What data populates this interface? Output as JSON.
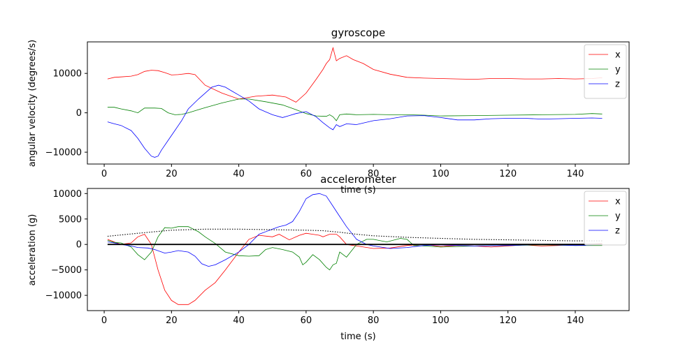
{
  "chart_data": [
    {
      "type": "line",
      "title": "gyroscope",
      "xlabel": "time (s)",
      "ylabel": "angular velocity (degrees/s)",
      "xlim": [
        -5,
        156
      ],
      "ylim": [
        -13000,
        18000
      ],
      "xticks": [
        0,
        20,
        40,
        60,
        80,
        100,
        120,
        140
      ],
      "yticks": [
        -10000,
        0,
        10000
      ],
      "legend": "top-right",
      "series": [
        {
          "name": "x",
          "color": "#ff0000",
          "x": [
            1,
            3,
            5,
            8,
            10,
            12,
            14,
            16,
            18,
            20,
            22,
            25,
            27,
            30,
            35,
            40,
            45,
            50,
            54,
            57,
            60,
            63,
            65,
            66,
            67,
            68,
            69,
            70,
            72,
            74,
            77,
            80,
            85,
            90,
            95,
            100,
            105,
            110,
            115,
            120,
            125,
            130,
            135,
            140,
            145,
            148
          ],
          "y": [
            8600,
            9000,
            9100,
            9300,
            9700,
            10500,
            10800,
            10700,
            10200,
            9600,
            9700,
            10000,
            9700,
            7000,
            5000,
            3500,
            4200,
            4500,
            4000,
            2700,
            5000,
            8500,
            11000,
            12500,
            13500,
            16500,
            13200,
            13800,
            14500,
            13500,
            12500,
            11000,
            9800,
            9000,
            8800,
            8700,
            8600,
            8500,
            8700,
            8700,
            8600,
            8600,
            8700,
            8600,
            8700,
            8900
          ]
        },
        {
          "name": "y",
          "color": "#008000",
          "x": [
            1,
            3,
            5,
            8,
            10,
            12,
            15,
            17,
            19,
            21,
            23,
            25,
            28,
            30,
            35,
            40,
            43,
            48,
            53,
            57,
            60,
            63,
            66,
            67,
            68,
            69,
            70,
            72,
            75,
            80,
            85,
            90,
            95,
            100,
            110,
            120,
            130,
            140,
            145,
            148
          ],
          "y": [
            1400,
            1400,
            1000,
            500,
            0,
            1200,
            1200,
            1100,
            0,
            -500,
            -400,
            0,
            800,
            1300,
            2500,
            3500,
            3500,
            2800,
            2000,
            800,
            -200,
            -800,
            -900,
            -500,
            -1000,
            -2000,
            -500,
            -300,
            -500,
            -400,
            -500,
            -500,
            -600,
            -800,
            -700,
            -600,
            -500,
            -400,
            -200,
            -300
          ]
        },
        {
          "name": "z",
          "color": "#0000ff",
          "x": [
            1,
            3,
            5,
            8,
            10,
            12,
            14,
            15,
            16,
            17,
            19,
            21,
            23,
            25,
            28,
            30,
            32,
            34,
            36,
            38,
            40,
            43,
            46,
            50,
            53,
            55,
            57,
            60,
            63,
            65,
            67,
            68,
            69,
            70,
            72,
            75,
            80,
            85,
            90,
            95,
            100,
            105,
            110,
            115,
            120,
            125,
            130,
            135,
            140,
            145,
            148
          ],
          "y": [
            -2300,
            -2800,
            -3200,
            -4500,
            -6500,
            -9000,
            -11000,
            -11300,
            -11000,
            -9500,
            -7000,
            -4500,
            -2000,
            1000,
            3500,
            5000,
            6500,
            7000,
            6500,
            5500,
            4500,
            3000,
            1000,
            -500,
            -1200,
            -700,
            -200,
            300,
            -1000,
            -2500,
            -3800,
            -4300,
            -3000,
            -3500,
            -2800,
            -3000,
            -2000,
            -1500,
            -800,
            -700,
            -1200,
            -1800,
            -1800,
            -1500,
            -1400,
            -1400,
            -1600,
            -1500,
            -1400,
            -1300,
            -1400
          ]
        }
      ]
    },
    {
      "type": "line",
      "title": "accelerometer",
      "xlabel": "time (s)",
      "ylabel": "acceleration (g)",
      "xlim": [
        -5,
        156
      ],
      "ylim": [
        -13000,
        11000
      ],
      "xticks": [
        0,
        20,
        40,
        60,
        80,
        100,
        120,
        140
      ],
      "yticks": [
        -10000,
        -5000,
        0,
        5000,
        10000
      ],
      "legend": "top-right",
      "series": [
        {
          "name": "x",
          "color": "#ff0000",
          "x": [
            1,
            3,
            5,
            8,
            10,
            12,
            14,
            16,
            18,
            20,
            22,
            25,
            27,
            30,
            33,
            36,
            40,
            43,
            46,
            50,
            52,
            55,
            58,
            60,
            62,
            64,
            65,
            67,
            69,
            70,
            72,
            75,
            80,
            85,
            90,
            95,
            100,
            105,
            110,
            115,
            120,
            125,
            130,
            135,
            140,
            145,
            148
          ],
          "y": [
            1000,
            500,
            0,
            300,
            1500,
            2000,
            0,
            -5000,
            -9000,
            -11000,
            -11800,
            -11800,
            -11000,
            -9000,
            -7500,
            -5000,
            -1500,
            1000,
            1800,
            1500,
            2000,
            900,
            1800,
            2200,
            2000,
            1800,
            1500,
            2000,
            2000,
            1500,
            0,
            -300,
            -800,
            -700,
            -200,
            0,
            -400,
            -200,
            -300,
            -500,
            -300,
            -100,
            -300,
            -200,
            0,
            100,
            200
          ]
        },
        {
          "name": "y",
          "color": "#008000",
          "x": [
            1,
            3,
            5,
            8,
            10,
            12,
            14,
            16,
            18,
            20,
            22,
            25,
            28,
            30,
            33,
            36,
            40,
            43,
            46,
            48,
            50,
            53,
            56,
            58,
            59,
            60,
            62,
            64,
            66,
            67,
            68,
            69,
            70,
            72,
            75,
            78,
            80,
            84,
            88,
            90,
            92,
            95,
            100,
            110,
            120,
            130,
            140,
            148
          ],
          "y": [
            800,
            400,
            300,
            -500,
            -2000,
            -3000,
            -1500,
            1500,
            3300,
            3200,
            3500,
            3500,
            2500,
            1500,
            200,
            -1500,
            -2200,
            -2300,
            -2200,
            -1000,
            -600,
            -1000,
            -1500,
            -2500,
            -4000,
            -3500,
            -2000,
            -3000,
            -4500,
            -5000,
            -4000,
            -3700,
            -1500,
            -2500,
            0,
            1000,
            1000,
            500,
            1200,
            1000,
            -200,
            -300,
            -500,
            -300,
            -200,
            -100,
            -200,
            -200
          ]
        },
        {
          "name": "z",
          "color": "#0000ff",
          "x": [
            1,
            3,
            5,
            8,
            10,
            13,
            15,
            18,
            20,
            22,
            25,
            27,
            29,
            31,
            33,
            36,
            40,
            43,
            46,
            50,
            52,
            54,
            56,
            58,
            60,
            62,
            64,
            66,
            68,
            70,
            72,
            75,
            78,
            80,
            85,
            90,
            95,
            100,
            110,
            120,
            130,
            140,
            148
          ],
          "y": [
            500,
            300,
            0,
            -300,
            -600,
            -700,
            -1000,
            -1700,
            -1500,
            -1200,
            -1500,
            -2300,
            -3800,
            -4300,
            -4000,
            -3000,
            -1500,
            0,
            2000,
            3000,
            3500,
            3800,
            4500,
            6500,
            9000,
            9800,
            10000,
            9500,
            7500,
            5500,
            3500,
            1000,
            0,
            -300,
            -800,
            -600,
            -200,
            -100,
            -300,
            -200,
            0,
            -200,
            -100
          ]
        },
        {
          "name": "",
          "color": "#000000",
          "dashed": true,
          "x": [
            1,
            10,
            20,
            30,
            40,
            50,
            60,
            65,
            70,
            75,
            80,
            90,
            100,
            110,
            120,
            130,
            140,
            148
          ],
          "y": [
            1600,
            2200,
            2800,
            3000,
            3000,
            2900,
            2800,
            2700,
            2400,
            2000,
            1700,
            1400,
            1200,
            1000,
            900,
            800,
            700,
            700
          ]
        },
        {
          "name": "",
          "color": "#000000",
          "baseline": true,
          "x": [
            1,
            148
          ],
          "y": [
            0,
            0
          ]
        }
      ]
    }
  ]
}
